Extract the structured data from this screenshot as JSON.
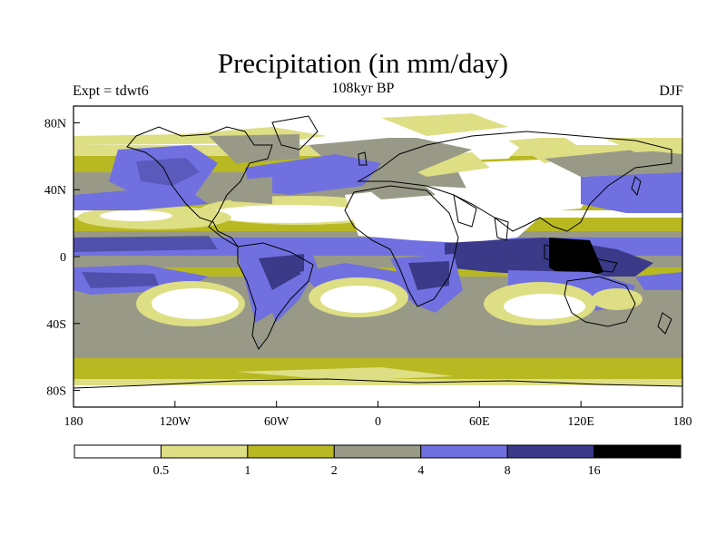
{
  "title": "Precipitation (in mm/day)",
  "subtitle_left": "Expt = tdwt6",
  "subtitle_center": "108kyr BP",
  "subtitle_right": "DJF",
  "lat_ticks": [
    "80N",
    "40N",
    "0",
    "40S",
    "80S"
  ],
  "lon_ticks": [
    "180",
    "120W",
    "60W",
    "0",
    "60E",
    "120E",
    "180"
  ],
  "colorbar": {
    "boundaries": [
      "0.5",
      "1",
      "2",
      "4",
      "8",
      "16"
    ],
    "colors": [
      "#ffffff",
      "#dede84",
      "#b8b822",
      "#999988",
      "#7070e0",
      "#3a3a88",
      "#000000"
    ],
    "units": "mm/day"
  },
  "chart_data": {
    "type": "heatmap",
    "projection": "cylindrical equidistant",
    "lon_range": [
      -180,
      180
    ],
    "lat_range": [
      -90,
      90
    ],
    "season": "DJF",
    "levels_mm_per_day": [
      0.5,
      1,
      2,
      4,
      8,
      16
    ]
  }
}
